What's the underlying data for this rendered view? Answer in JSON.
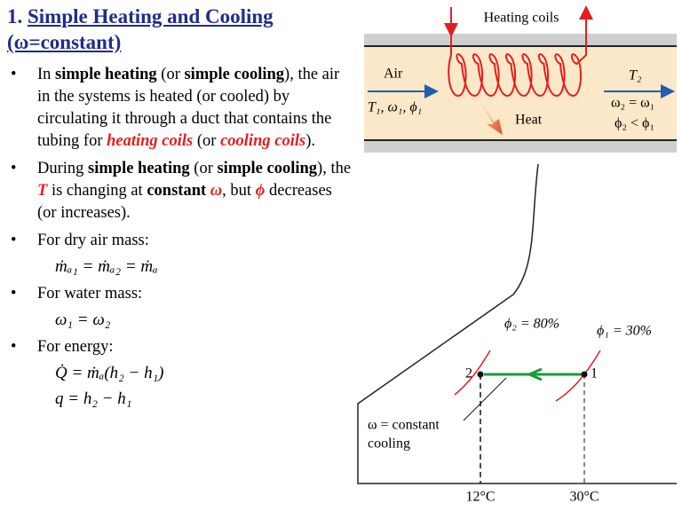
{
  "header": {
    "number": "1.",
    "title": "Simple Heating and Cooling",
    "subtitle": "(ω=constant)"
  },
  "bullets": [
    {
      "segments": [
        {
          "text": "In "
        },
        {
          "text": "simple heating",
          "style": "bold"
        },
        {
          "text": " (or "
        },
        {
          "text": "simple cooling",
          "style": "bold"
        },
        {
          "text": "), the air in the systems is heated (or cooled) by circulating it through a duct that contains the tubing for "
        },
        {
          "text": "heating coils",
          "style": "red"
        },
        {
          "text": " (or "
        },
        {
          "text": "cooling coils",
          "style": "red"
        },
        {
          "text": ")."
        }
      ]
    },
    {
      "segments": [
        {
          "text": "During "
        },
        {
          "text": "simple heating",
          "style": "bold"
        },
        {
          "text": " (or "
        },
        {
          "text": "simple cooling",
          "style": "bold"
        },
        {
          "text": "), the "
        },
        {
          "text": "T",
          "style": "red"
        },
        {
          "text": " is changing at "
        },
        {
          "text": "constant",
          "style": "bold"
        },
        {
          "text": " "
        },
        {
          "text": "ω",
          "style": "red"
        },
        {
          "text": ", but "
        },
        {
          "text": "ϕ",
          "style": "red"
        },
        {
          "text": " decreases (or increases)."
        }
      ]
    },
    {
      "segments": [
        {
          "text": "For dry air mass:"
        }
      ],
      "equations": [
        "ṁₐ₁ = ṁₐ₂ = ṁₐ"
      ]
    },
    {
      "segments": [
        {
          "text": "For water mass:"
        }
      ],
      "equations": [
        "ω₁ = ω₂"
      ]
    },
    {
      "segments": [
        {
          "text": "For energy:"
        }
      ],
      "equations": [
        "Q̇ = ṁₐ(h₂ − h₁)",
        "q = h₂ − h₁"
      ]
    }
  ],
  "duct": {
    "coils_label": "Heating coils",
    "air_label": "Air",
    "inlet_state": "T₁, ω₁, ϕ₁",
    "heat_label": "Heat",
    "outlet_T": "T₂",
    "outlet_omega": "ω₂ = ω₁",
    "outlet_phi": "ϕ₂ < ϕ₁"
  },
  "process_chart": {
    "phi2_label": "ϕ₂ = 80%",
    "phi1_label": "ϕ₁ = 30%",
    "state2": "2",
    "state1": "1",
    "note_line1": "ω = constant",
    "note_line2": "cooling",
    "t2_label": "12°C",
    "t1_label": "30°C"
  }
}
